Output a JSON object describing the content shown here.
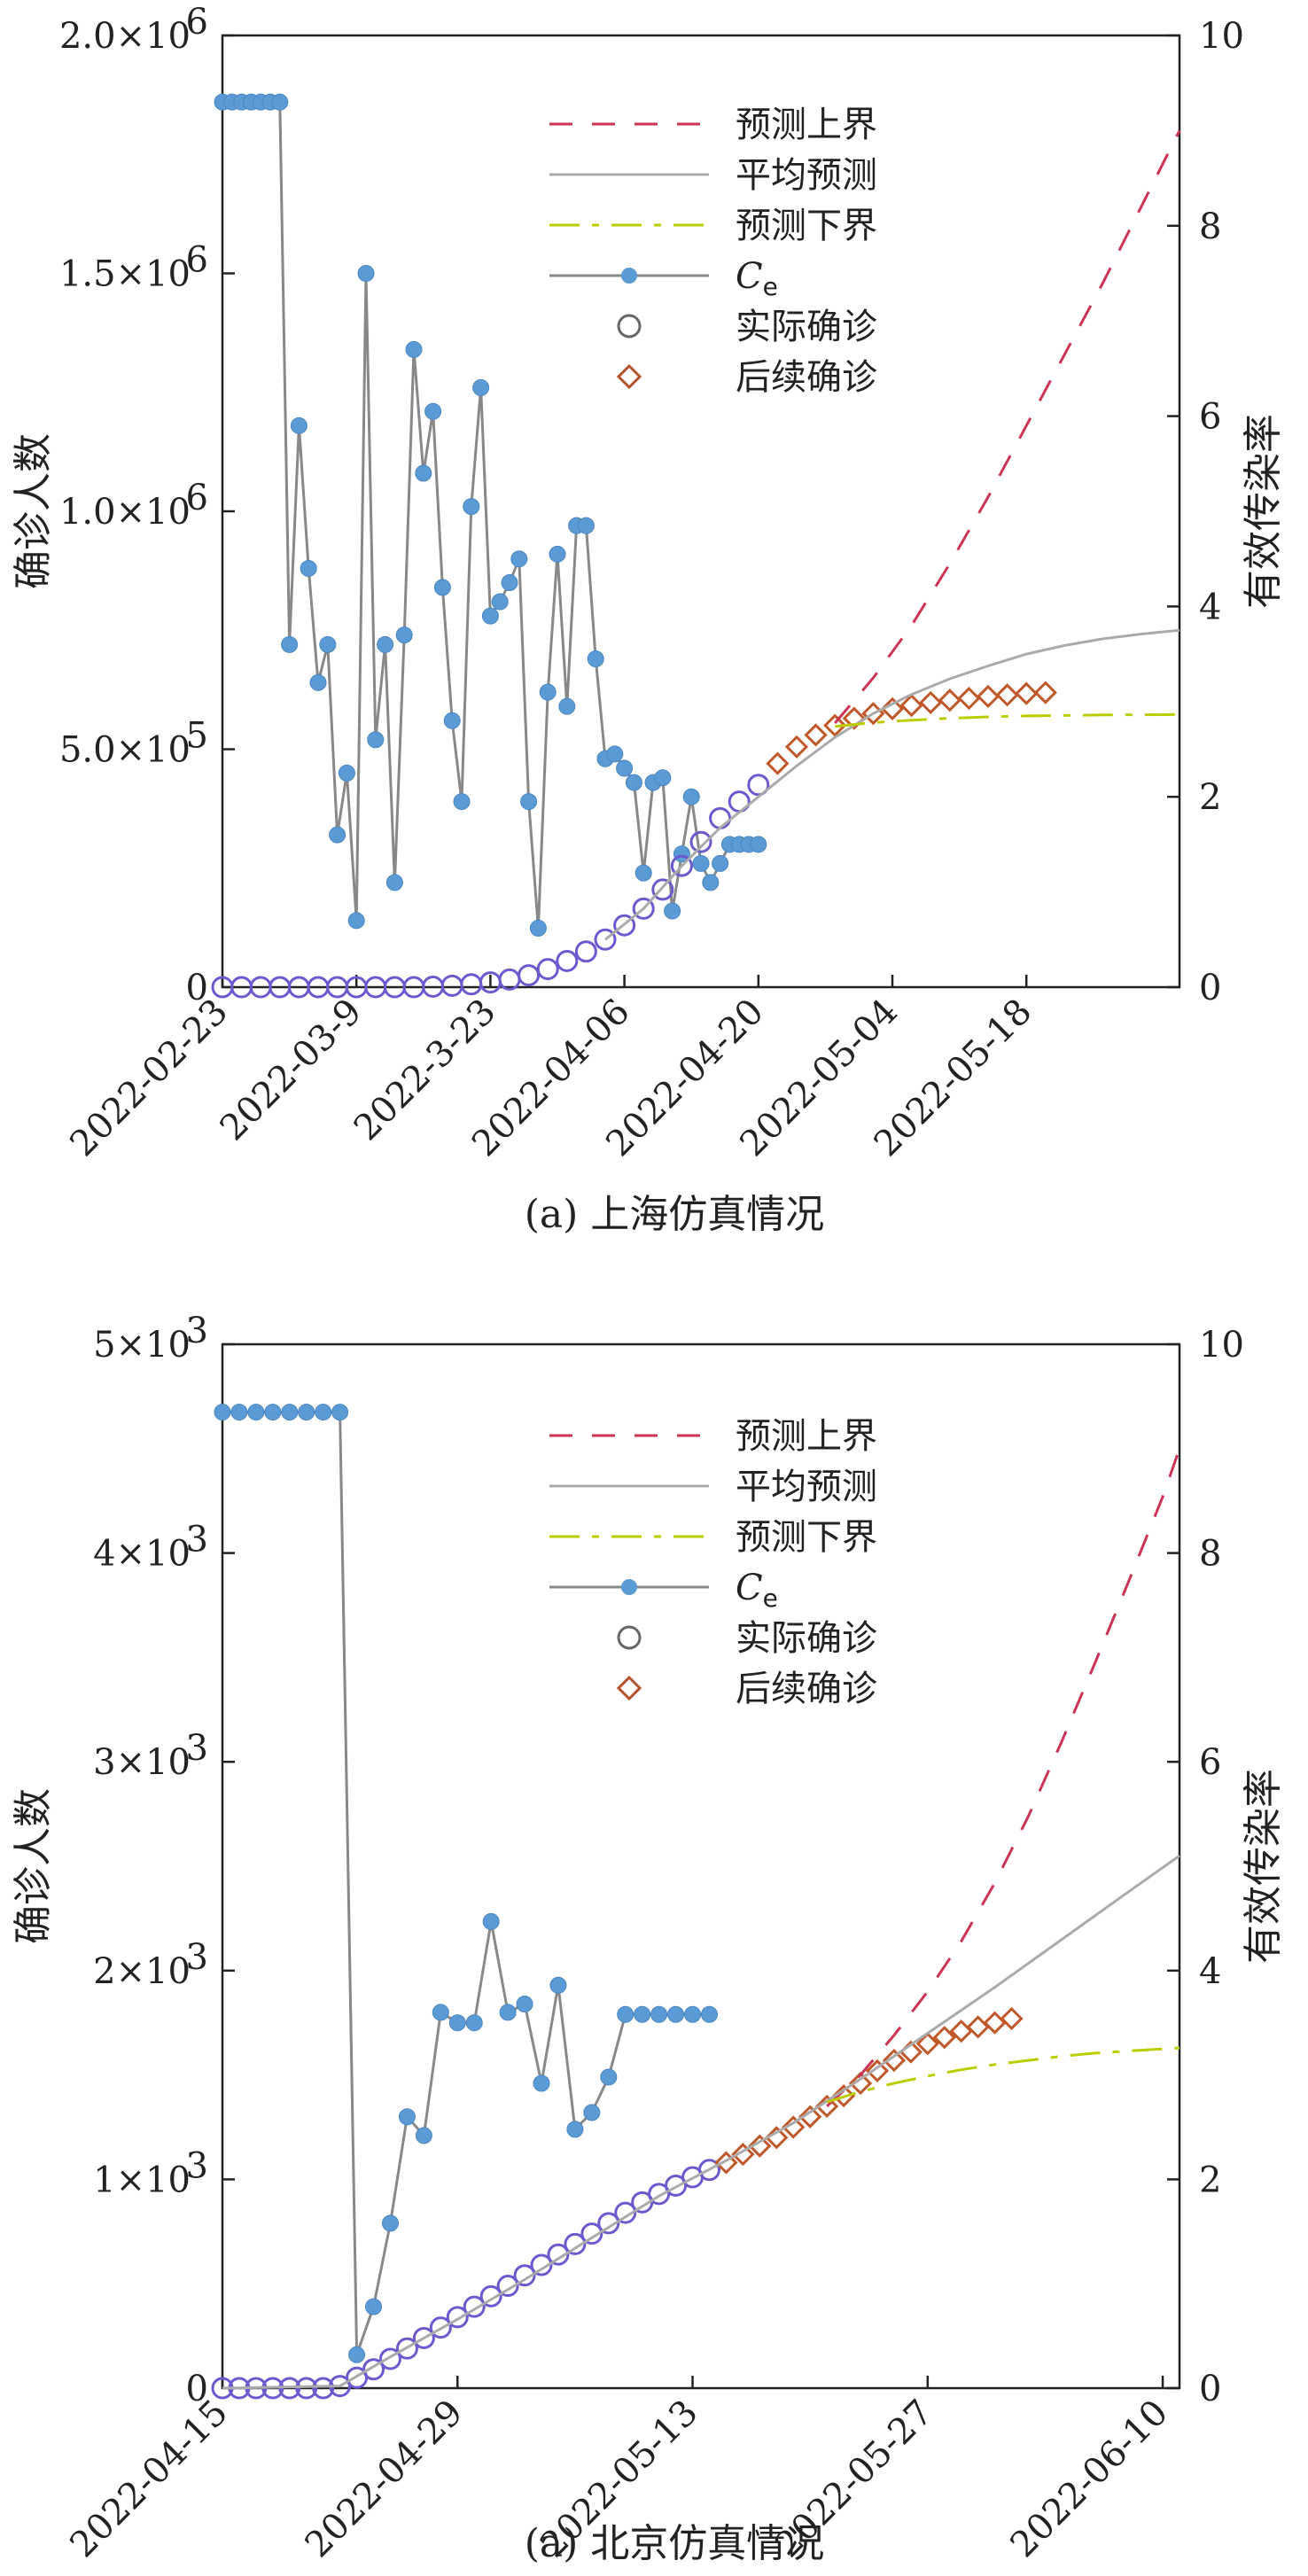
{
  "chart_data": [
    {
      "type": "line",
      "caption": "(a) 上海仿真情况",
      "ylabel_left": "确诊人数",
      "ylabel_right": "有效传染率",
      "x_ticks": [
        "2022-02-23",
        "2022-03-9",
        "2022-3-23",
        "2022-04-06",
        "2022-04-20",
        "2022-05-04",
        "2022-05-18"
      ],
      "x_tick_days": [
        0,
        14,
        28,
        42,
        56,
        70,
        84
      ],
      "xlim_days": [
        0,
        100
      ],
      "ylim_left": [
        0,
        2000000
      ],
      "ylim_right": [
        0,
        10
      ],
      "y_left_ticks": [
        {
          "mant": "0",
          "exp": ""
        },
        {
          "mant": "5.0×10",
          "exp": "5"
        },
        {
          "mant": "1.0×10",
          "exp": "6"
        },
        {
          "mant": "1.5×10",
          "exp": "6"
        },
        {
          "mant": "2.0×10",
          "exp": "6"
        }
      ],
      "y_right_ticks": [
        "0",
        "2",
        "4",
        "6",
        "8",
        "10"
      ],
      "legend": [
        {
          "label": "预测上界",
          "style": "dash",
          "color": "#cc3355"
        },
        {
          "label": "平均预测",
          "style": "solid",
          "color": "#aaaaaa"
        },
        {
          "label": "预测下界",
          "style": "dashdot",
          "color": "#bbcc00"
        },
        {
          "label": "C",
          "sub": "e",
          "style": "line-marker",
          "color": "#5b9bd5"
        },
        {
          "label": "实际确诊",
          "style": "circle",
          "color": "#666666"
        },
        {
          "label": "后续确诊",
          "style": "diamond",
          "color": "#b5502a"
        }
      ],
      "series": [
        {
          "name": "C_e",
          "axis": "right",
          "x": [
            0,
            1,
            2,
            3,
            4,
            5,
            6,
            7,
            8,
            9,
            10,
            11,
            12,
            13,
            14,
            15,
            16,
            17,
            18,
            19,
            20,
            21,
            22,
            23,
            24,
            25,
            26,
            27,
            28,
            29,
            30,
            31,
            32,
            33,
            34,
            35,
            36,
            37,
            38,
            39,
            40,
            41,
            42,
            43,
            44,
            45,
            46,
            47,
            48,
            49,
            50,
            51,
            52,
            53,
            54,
            55,
            56
          ],
          "y": [
            9.3,
            9.3,
            9.3,
            9.3,
            9.3,
            9.3,
            9.3,
            3.6,
            5.9,
            4.4,
            3.2,
            3.6,
            1.6,
            2.25,
            0.7,
            7.5,
            2.6,
            3.6,
            1.1,
            3.7,
            6.7,
            5.4,
            6.05,
            4.2,
            2.8,
            1.95,
            5.05,
            6.3,
            3.9,
            4.05,
            4.25,
            4.5,
            1.95,
            0.62,
            3.1,
            4.55,
            2.95,
            4.85,
            4.85,
            3.45,
            2.4,
            2.45,
            2.3,
            2.15,
            1.2,
            2.15,
            2.2,
            0.8,
            1.4,
            2.0,
            1.3,
            1.1,
            1.3,
            1.5,
            1.5,
            1.5,
            1.5
          ]
        },
        {
          "name": "实际确诊",
          "axis": "left",
          "x": [
            0,
            2,
            4,
            6,
            8,
            10,
            12,
            14,
            16,
            18,
            20,
            22,
            24,
            26,
            28,
            30,
            32,
            34,
            36,
            38,
            40,
            42,
            44,
            46,
            48,
            50,
            52,
            54,
            56
          ],
          "y": [
            0,
            0,
            0,
            0,
            0,
            0,
            0,
            0,
            0,
            0,
            0,
            1000,
            3000,
            6000,
            10000,
            16000,
            25000,
            38000,
            55000,
            75000,
            100000,
            130000,
            165000,
            205000,
            255000,
            305000,
            355000,
            390000,
            425000
          ]
        },
        {
          "name": "后续确诊",
          "axis": "left",
          "x": [
            58,
            60,
            62,
            64,
            66,
            68,
            70,
            72,
            74,
            76,
            78,
            80,
            82,
            84,
            86
          ],
          "y": [
            470000,
            505000,
            530000,
            550000,
            565000,
            575000,
            585000,
            592000,
            598000,
            603000,
            607000,
            611000,
            614000,
            617000,
            619000
          ]
        },
        {
          "name": "预测上界",
          "axis": "left",
          "x": [
            64,
            68,
            72,
            76,
            80,
            84,
            88,
            92,
            96,
            100
          ],
          "y": [
            555000,
            650000,
            760000,
            890000,
            1030000,
            1180000,
            1330000,
            1480000,
            1640000,
            1800000
          ]
        },
        {
          "name": "平均预测",
          "axis": "left",
          "x": [
            40,
            44,
            48,
            52,
            56,
            60,
            64,
            68,
            72,
            76,
            80,
            84,
            88,
            92,
            96,
            100
          ],
          "y": [
            100000,
            165000,
            255000,
            335000,
            400000,
            465000,
            525000,
            575000,
            615000,
            648000,
            675000,
            700000,
            718000,
            732000,
            742000,
            750000
          ]
        },
        {
          "name": "预测下界",
          "axis": "left",
          "x": [
            64,
            68,
            72,
            76,
            80,
            84,
            88,
            92,
            96,
            100
          ],
          "y": [
            548000,
            556000,
            561000,
            565000,
            568000,
            570000,
            571000,
            572000,
            572500,
            573000
          ]
        }
      ]
    },
    {
      "type": "line",
      "caption": "(a) 北京仿真情况",
      "ylabel_left": "确诊人数",
      "ylabel_right": "有效传染率",
      "x_ticks": [
        "2022-04-15",
        "2022-04-29",
        "2022-05-13",
        "2022-05-27",
        "2022-06-10"
      ],
      "x_tick_days": [
        0,
        14,
        28,
        42,
        56
      ],
      "xlim_days": [
        0,
        57
      ],
      "ylim_left": [
        0,
        5000
      ],
      "ylim_right": [
        0,
        10
      ],
      "y_left_ticks": [
        {
          "mant": "0",
          "exp": ""
        },
        {
          "mant": "1×10",
          "exp": "3"
        },
        {
          "mant": "2×10",
          "exp": "3"
        },
        {
          "mant": "3×10",
          "exp": "3"
        },
        {
          "mant": "4×10",
          "exp": "3"
        },
        {
          "mant": "5×10",
          "exp": "3"
        }
      ],
      "y_right_ticks": [
        "0",
        "2",
        "4",
        "6",
        "8",
        "10"
      ],
      "legend": [
        {
          "label": "预测上界",
          "style": "dash",
          "color": "#cc3355"
        },
        {
          "label": "平均预测",
          "style": "solid",
          "color": "#aaaaaa"
        },
        {
          "label": "预测下界",
          "style": "dashdot",
          "color": "#bbcc00"
        },
        {
          "label": "C",
          "sub": "e",
          "style": "line-marker",
          "color": "#5b9bd5"
        },
        {
          "label": "实际确诊",
          "style": "circle",
          "color": "#666666"
        },
        {
          "label": "后续确诊",
          "style": "diamond",
          "color": "#b5502a"
        }
      ],
      "series": [
        {
          "name": "C_e",
          "axis": "right",
          "x": [
            0,
            1,
            2,
            3,
            4,
            5,
            6,
            7,
            8,
            9,
            10,
            11,
            12,
            13,
            14,
            15,
            16,
            17,
            18,
            19,
            20,
            21,
            22,
            23,
            24,
            25,
            26,
            27,
            28,
            29
          ],
          "y": [
            9.35,
            9.35,
            9.35,
            9.35,
            9.35,
            9.35,
            9.35,
            9.35,
            0.32,
            0.78,
            1.58,
            2.6,
            2.42,
            3.6,
            3.5,
            3.5,
            4.47,
            3.6,
            3.68,
            2.92,
            3.86,
            2.48,
            2.64,
            2.98,
            3.58,
            3.58,
            3.58,
            3.58,
            3.58,
            3.58
          ]
        },
        {
          "name": "实际确诊",
          "axis": "left",
          "x": [
            0,
            1,
            2,
            3,
            4,
            5,
            6,
            7,
            8,
            9,
            10,
            11,
            12,
            13,
            14,
            15,
            16,
            17,
            18,
            19,
            20,
            21,
            22,
            23,
            24,
            25,
            26,
            27,
            28,
            29
          ],
          "y": [
            0,
            0,
            0,
            0,
            0,
            0,
            0,
            10,
            50,
            90,
            140,
            190,
            240,
            290,
            340,
            390,
            440,
            490,
            540,
            590,
            640,
            690,
            740,
            790,
            840,
            890,
            930,
            970,
            1010,
            1045
          ]
        },
        {
          "name": "后续确诊",
          "axis": "left",
          "x": [
            30,
            31,
            32,
            33,
            34,
            35,
            36,
            37,
            38,
            39,
            40,
            41,
            42,
            43,
            44,
            45,
            46,
            47
          ],
          "y": [
            1080,
            1120,
            1160,
            1200,
            1250,
            1300,
            1350,
            1400,
            1460,
            1520,
            1570,
            1610,
            1650,
            1680,
            1710,
            1730,
            1750,
            1770
          ]
        },
        {
          "name": "预测上界",
          "axis": "left",
          "x": [
            36,
            38,
            40,
            42,
            44,
            46,
            48,
            50,
            52,
            54,
            56,
            57
          ],
          "y": [
            1350,
            1500,
            1690,
            1900,
            2140,
            2420,
            2740,
            3100,
            3480,
            3870,
            4270,
            4500
          ]
        },
        {
          "name": "平均预测",
          "axis": "left",
          "x": [
            0,
            7,
            10,
            14,
            18,
            22,
            26,
            30,
            34,
            38,
            42,
            46,
            50,
            54,
            57
          ],
          "y": [
            0,
            10,
            150,
            330,
            520,
            720,
            920,
            1090,
            1270,
            1480,
            1700,
            1920,
            2150,
            2380,
            2550
          ]
        },
        {
          "name": "预测下界",
          "axis": "left",
          "x": [
            36,
            38,
            40,
            42,
            44,
            46,
            48,
            50,
            52,
            54,
            56,
            57
          ],
          "y": [
            1370,
            1420,
            1460,
            1495,
            1525,
            1550,
            1570,
            1590,
            1605,
            1615,
            1625,
            1630
          ]
        }
      ]
    }
  ]
}
